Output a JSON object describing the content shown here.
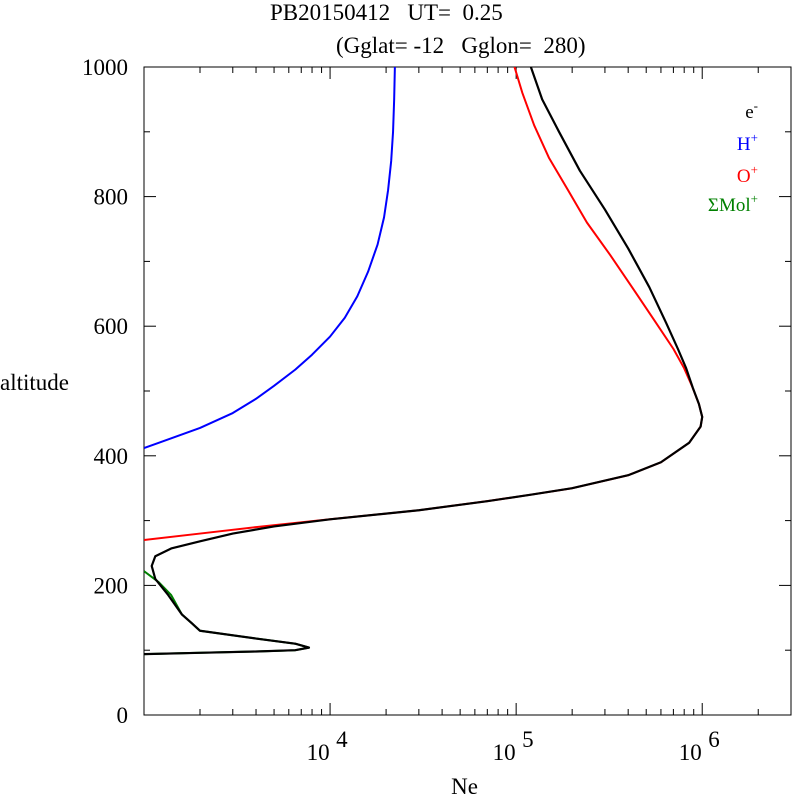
{
  "title": {
    "line1": "PB20150412   UT=  0.25",
    "line2": "(Gglat= -12   Gglon=  280)"
  },
  "chart_data": {
    "type": "line",
    "title": "PB20150412   UT=  0.25 (Gglat= -12   Gglon=  280)",
    "xlabel": "Ne",
    "ylabel": "altitude",
    "xscale": "log",
    "xlim": [
      1000,
      3000000
    ],
    "ylim": [
      0,
      1000
    ],
    "grid": false,
    "legend_position": "top-right",
    "x_ticks": [
      {
        "value": 10000,
        "base": "10",
        "exp": "4"
      },
      {
        "value": 100000,
        "base": "10",
        "exp": "5"
      },
      {
        "value": 1000000,
        "base": "10",
        "exp": "6"
      }
    ],
    "y_ticks": [
      0,
      200,
      400,
      600,
      800,
      1000
    ],
    "series": [
      {
        "name": "H+",
        "label_base": "H",
        "label_sup": "+",
        "color": "#0000ff",
        "points": [
          [
            1000,
            412
          ],
          [
            1200,
            420
          ],
          [
            1500,
            430
          ],
          [
            2000,
            443
          ],
          [
            3000,
            466
          ],
          [
            4000,
            488
          ],
          [
            5000,
            508
          ],
          [
            6500,
            533
          ],
          [
            8000,
            556
          ],
          [
            10000,
            584
          ],
          [
            12000,
            613
          ],
          [
            14000,
            646
          ],
          [
            16000,
            684
          ],
          [
            18000,
            726
          ],
          [
            19500,
            768
          ],
          [
            20500,
            810
          ],
          [
            21300,
            855
          ],
          [
            21800,
            900
          ],
          [
            22100,
            950
          ],
          [
            22300,
            1000
          ]
        ]
      },
      {
        "name": "O+",
        "label_base": "O",
        "label_sup": "+",
        "color": "#ff0000",
        "points": [
          [
            1000,
            270
          ],
          [
            2000,
            280
          ],
          [
            4000,
            290
          ],
          [
            10000,
            302
          ],
          [
            30000,
            316
          ],
          [
            70000,
            330
          ],
          [
            120000,
            340
          ],
          [
            200000,
            350
          ],
          [
            400000,
            370
          ],
          [
            600000,
            390
          ],
          [
            850000,
            420
          ],
          [
            980000,
            445
          ],
          [
            1000000,
            460
          ],
          [
            960000,
            480
          ],
          [
            880000,
            508
          ],
          [
            800000,
            535
          ],
          [
            700000,
            565
          ],
          [
            550000,
            610
          ],
          [
            420000,
            660
          ],
          [
            320000,
            710
          ],
          [
            240000,
            760
          ],
          [
            190000,
            810
          ],
          [
            150000,
            860
          ],
          [
            125000,
            910
          ],
          [
            108000,
            960
          ],
          [
            98000,
            1000
          ]
        ]
      },
      {
        "name": "ΣMol+",
        "label_base": "ΣMol",
        "label_sup": "+",
        "color": "#008000",
        "points": [
          [
            1000,
            222
          ],
          [
            1200,
            205
          ],
          [
            1400,
            185
          ],
          [
            1600,
            155
          ],
          [
            1800,
            142
          ],
          [
            2000,
            130
          ],
          [
            4000,
            118
          ],
          [
            6500,
            110
          ],
          [
            7700,
            104
          ],
          [
            6500,
            100
          ],
          [
            4000,
            98
          ],
          [
            2000,
            96
          ],
          [
            1000,
            94
          ]
        ]
      },
      {
        "name": "e-",
        "label_base": "e",
        "label_sup": "-",
        "color": "#000000",
        "points": [
          [
            1000,
            94
          ],
          [
            2000,
            96
          ],
          [
            4000,
            98
          ],
          [
            6500,
            100
          ],
          [
            7700,
            104
          ],
          [
            6500,
            110
          ],
          [
            4000,
            118
          ],
          [
            2000,
            130
          ],
          [
            1800,
            142
          ],
          [
            1600,
            155
          ],
          [
            1350,
            185
          ],
          [
            1150,
            210
          ],
          [
            1100,
            230
          ],
          [
            1150,
            245
          ],
          [
            1400,
            257
          ],
          [
            2000,
            268
          ],
          [
            3000,
            280
          ],
          [
            5000,
            291
          ],
          [
            10000,
            302
          ],
          [
            30000,
            316
          ],
          [
            70000,
            330
          ],
          [
            120000,
            340
          ],
          [
            200000,
            350
          ],
          [
            400000,
            370
          ],
          [
            600000,
            390
          ],
          [
            850000,
            420
          ],
          [
            980000,
            445
          ],
          [
            1000000,
            460
          ],
          [
            960000,
            480
          ],
          [
            890000,
            505
          ],
          [
            820000,
            535
          ],
          [
            740000,
            565
          ],
          [
            640000,
            605
          ],
          [
            520000,
            660
          ],
          [
            400000,
            720
          ],
          [
            300000,
            780
          ],
          [
            220000,
            840
          ],
          [
            170000,
            900
          ],
          [
            138000,
            950
          ],
          [
            120000,
            1000
          ]
        ]
      }
    ],
    "legend_order": [
      "e-",
      "H+",
      "O+",
      "ΣMol+"
    ]
  }
}
